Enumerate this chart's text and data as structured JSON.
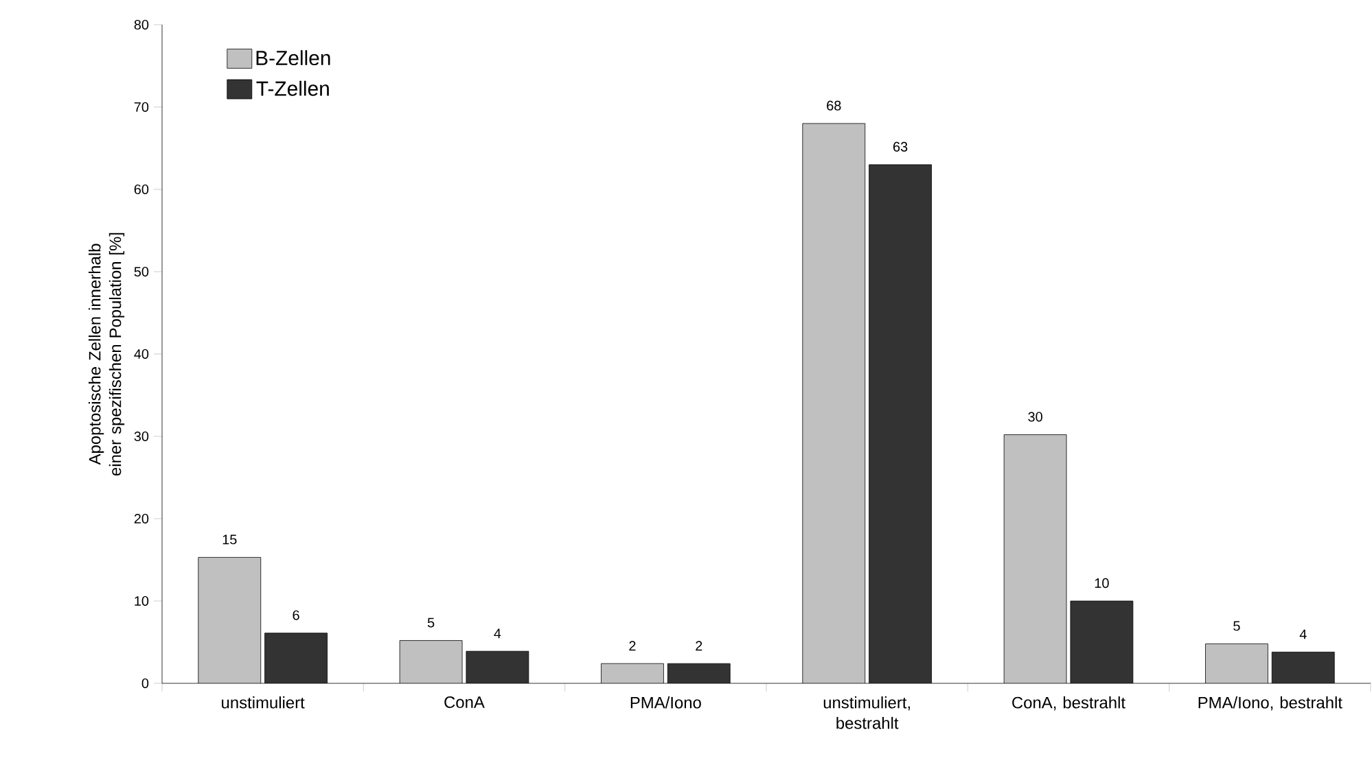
{
  "chart_data": {
    "type": "bar",
    "ylabel": "Apoptosische Zellen innerhalb einer spezifischen Population [%]",
    "categories": [
      "unstimuliert",
      "ConA",
      "PMA/Iono",
      "unstimuliert, bestrahlt",
      "ConA, bestrahlt",
      "PMA/Iono, bestrahlt"
    ],
    "series": [
      {
        "name": "B-Zellen",
        "color": "#c0c0c0",
        "values": [
          15.3,
          5.2,
          2.4,
          68,
          30.2,
          4.8
        ],
        "value_labels": [
          "15",
          "5",
          "2",
          "68",
          "30",
          "5"
        ]
      },
      {
        "name": "T-Zellen",
        "color": "#333333",
        "values": [
          6.1,
          3.9,
          2.4,
          63,
          10,
          3.8
        ],
        "value_labels": [
          "6",
          "4",
          "2",
          "63",
          "10",
          "4"
        ]
      }
    ],
    "ylim": [
      0,
      80
    ],
    "yticks": [
      0,
      10,
      20,
      30,
      40,
      50,
      60,
      70,
      80
    ],
    "grid": false,
    "legend": "top left"
  }
}
